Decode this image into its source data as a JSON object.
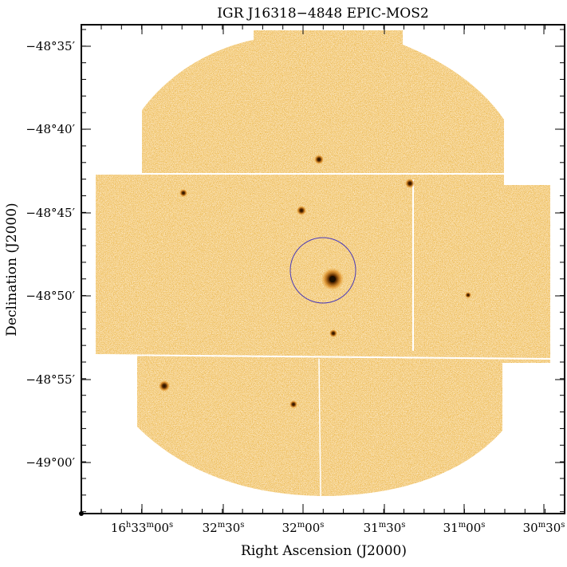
{
  "title": "IGR J16318−4848 EPIC-MOS2",
  "axes": {
    "xlabel": "Right Ascension (J2000)",
    "ylabel": "Declination (J2000)"
  },
  "x_ticks": [
    {
      "h": "16",
      "m": "33",
      "s": "00"
    },
    {
      "h": "",
      "m": "32",
      "s": "30"
    },
    {
      "h": "",
      "m": "32",
      "s": "00"
    },
    {
      "h": "",
      "m": "31",
      "s": "30"
    },
    {
      "h": "",
      "m": "31",
      "s": "00"
    },
    {
      "h": "",
      "m": "30",
      "s": "30"
    }
  ],
  "y_ticks": [
    "−48°35′",
    "−48°40′",
    "−48°45′",
    "−48°50′",
    "−48°55′",
    "−49°00′"
  ],
  "colors": {
    "map_light": "#f6c16a",
    "map_mid": "#e59212",
    "map_dark": "#b8650a",
    "source": "#1a0d00",
    "circle": "#4b3bb8"
  },
  "image_content": "EPIC-MOS2 X-ray count map with bright central source inside blue extraction circle"
}
